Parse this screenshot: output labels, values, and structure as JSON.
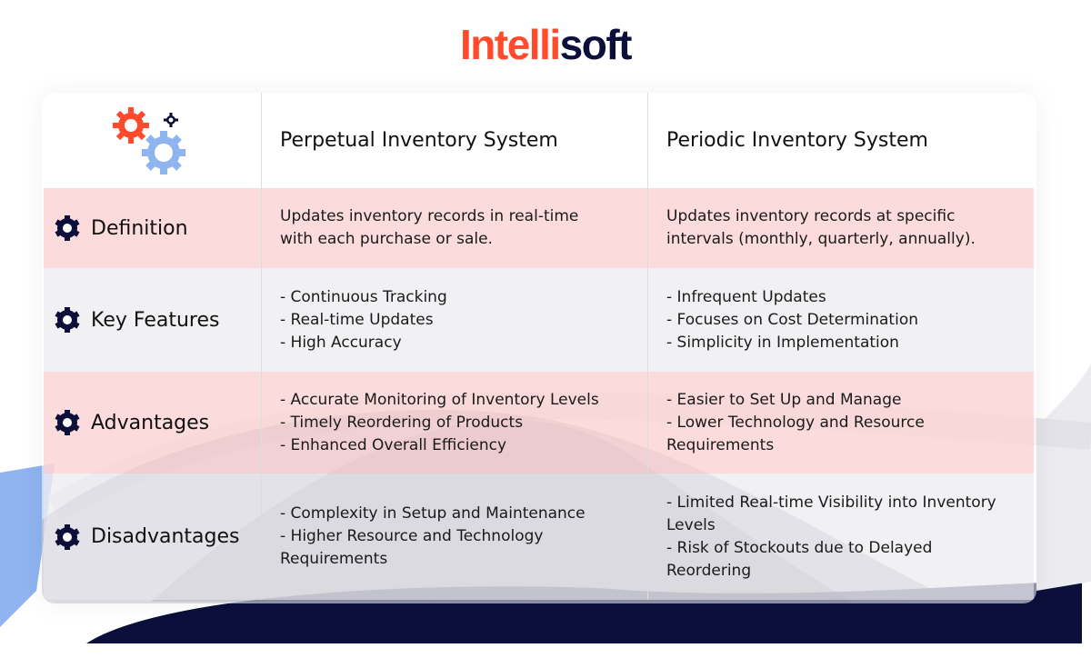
{
  "brand": {
    "logo_part1": "Intelli",
    "logo_part2": "soft",
    "accent": "#ff4b2b",
    "navy": "#0b0f3a"
  },
  "header": {
    "col1": "Perpetual Inventory System",
    "col2": "Periodic Inventory System",
    "icon": "gears-icon"
  },
  "rows": [
    {
      "label": "Definition",
      "icon": "gear-icon",
      "col1": [
        "Updates inventory records in real-time with each purchase or sale."
      ],
      "col2": [
        "Updates inventory records at specific intervals (monthly, quarterly, annually)."
      ]
    },
    {
      "label": "Key Features",
      "icon": "gear-icon",
      "col1": [
        "- Continuous Tracking",
        "- Real-time Updates",
        "- High Accuracy"
      ],
      "col2": [
        "- Infrequent Updates",
        "- Focuses on Cost Determination",
        "- Simplicity in Implementation"
      ]
    },
    {
      "label": "Advantages",
      "icon": "gear-icon",
      "col1": [
        "- Accurate Monitoring of Inventory Levels",
        "- Timely Reordering of Products",
        "- Enhanced Overall Efficiency"
      ],
      "col2": [
        "- Easier to Set Up and Manage",
        "- Lower Technology and Resource Requirements"
      ]
    },
    {
      "label": "Disadvantages",
      "icon": "gear-icon",
      "col1": [
        "- Complexity in Setup and Maintenance",
        "- Higher Resource and Technology Requirements"
      ],
      "col2": [
        "- Limited Real-time Visibility into Inventory Levels",
        "- Risk of Stockouts due to Delayed Reordering"
      ]
    }
  ]
}
